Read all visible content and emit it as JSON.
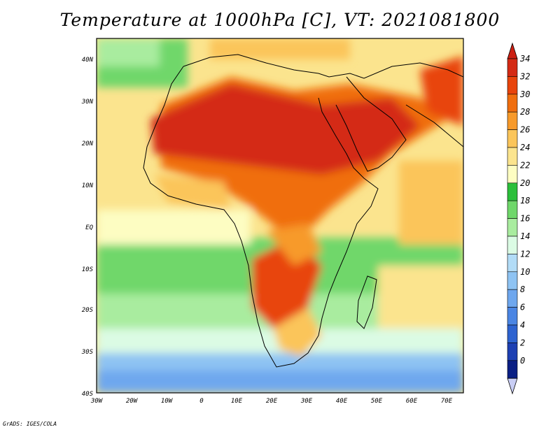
{
  "title": "Temperature at 1000hPa [C], VT: 2021081800",
  "credit": "GrADS: IGES/COLA",
  "map": {
    "lon_labels": [
      "30W",
      "20W",
      "10W",
      "0",
      "10E",
      "20E",
      "30E",
      "40E",
      "50E",
      "60E",
      "70E"
    ],
    "lat_labels": [
      "40N",
      "30N",
      "20N",
      "10N",
      "EQ",
      "10S",
      "20S",
      "30S",
      "40S"
    ],
    "extent": {
      "lon_min": -30,
      "lon_max": 75,
      "lat_min": -40,
      "lat_max": 45
    }
  },
  "colorbar": {
    "unit": "C",
    "levels": [
      "34",
      "32",
      "30",
      "28",
      "26",
      "24",
      "22",
      "20",
      "18",
      "16",
      "14",
      "12",
      "10",
      "8",
      "6",
      "4",
      "2",
      "0"
    ],
    "colors": [
      "#d42a14",
      "#e8440c",
      "#f06e0e",
      "#f79a2a",
      "#fbc55a",
      "#fbe48e",
      "#fdfdc2",
      "#2bbf3a",
      "#6fd76a",
      "#a9ec9f",
      "#dbfbe4",
      "#b2dcf7",
      "#8ec3f3",
      "#6ea7ee",
      "#4a85e3",
      "#2d63d0",
      "#1d40b3",
      "#0a1f84"
    ],
    "over_color": "#cc1f12",
    "under_color": "#c9cef5"
  }
}
